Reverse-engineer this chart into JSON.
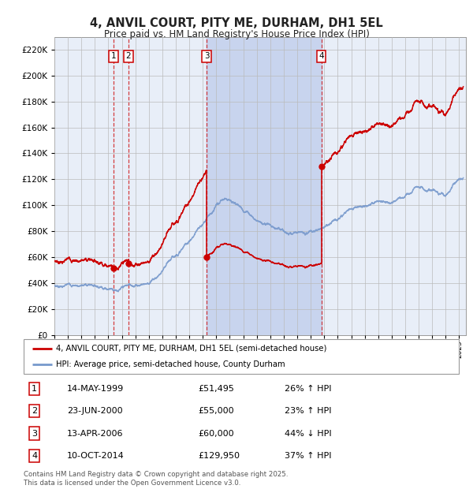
{
  "title": "4, ANVIL COURT, PITY ME, DURHAM, DH1 5EL",
  "subtitle": "Price paid vs. HM Land Registry's House Price Index (HPI)",
  "background_color": "#ffffff",
  "chart_bg_color": "#e8eef8",
  "grid_color": "#bbbbbb",
  "ylim": [
    0,
    230000
  ],
  "yticks": [
    0,
    20000,
    40000,
    60000,
    80000,
    100000,
    120000,
    140000,
    160000,
    180000,
    200000,
    220000
  ],
  "xlim": [
    1995.0,
    2025.5
  ],
  "sale_dates": [
    1999.37,
    2000.48,
    2006.28,
    2014.78
  ],
  "sale_prices": [
    51495,
    55000,
    60000,
    129950
  ],
  "sale_labels": [
    "1",
    "2",
    "3",
    "4"
  ],
  "legend_line1": "4, ANVIL COURT, PITY ME, DURHAM, DH1 5EL (semi-detached house)",
  "legend_line2": "HPI: Average price, semi-detached house, County Durham",
  "table_entries": [
    {
      "num": "1",
      "date": "14-MAY-1999",
      "price": "£51,495",
      "hpi": "26% ↑ HPI"
    },
    {
      "num": "2",
      "date": "23-JUN-2000",
      "price": "£55,000",
      "hpi": "23% ↑ HPI"
    },
    {
      "num": "3",
      "date": "13-APR-2006",
      "price": "£60,000",
      "hpi": "44% ↓ HPI"
    },
    {
      "num": "4",
      "date": "10-OCT-2014",
      "price": "£129,950",
      "hpi": "37% ↑ HPI"
    }
  ],
  "footer": "Contains HM Land Registry data © Crown copyright and database right 2025.\nThis data is licensed under the Open Government Licence v3.0.",
  "red_color": "#cc0000",
  "blue_color": "#7799cc",
  "shade_color": "#c8d4ee"
}
